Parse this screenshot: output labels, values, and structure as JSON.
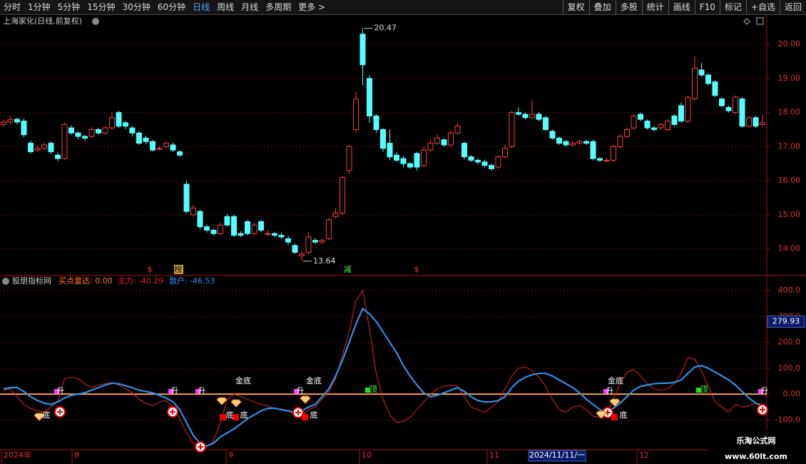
{
  "toolbar": {
    "left": [
      {
        "label": "分时"
      },
      {
        "label": "1分钟"
      },
      {
        "label": "5分钟"
      },
      {
        "label": "15分钟"
      },
      {
        "label": "30分钟"
      },
      {
        "label": "60分钟"
      },
      {
        "label": "日线",
        "active": true
      },
      {
        "label": "周线"
      },
      {
        "label": "月线"
      },
      {
        "label": "多周期"
      },
      {
        "label": "更多 >"
      }
    ],
    "right": [
      {
        "label": "复权"
      },
      {
        "label": "叠加"
      },
      {
        "label": "多股"
      },
      {
        "label": "统计"
      },
      {
        "label": "画线"
      },
      {
        "label": "F10"
      },
      {
        "label": "标记"
      },
      {
        "label": "+自选"
      },
      {
        "label": "返回"
      }
    ]
  },
  "chart_data": [
    {
      "type": "candlestick",
      "title": "上海家化(日线,前复权)",
      "up_color": "#ff3c3c",
      "down_color": "#54ffff",
      "open": [
        17.65,
        17.72,
        17.8,
        17.75,
        17.1,
        16.9,
        16.95,
        17.1,
        16.75,
        16.65,
        17.55,
        17.4,
        17.3,
        17.3,
        17.5,
        17.4,
        17.55,
        18.0,
        17.7,
        17.55,
        17.4,
        17.25,
        17.15,
        16.95,
        17.0,
        17.05,
        16.85,
        15.9,
        15.0,
        15.1,
        14.65,
        14.55,
        14.45,
        14.95,
        14.95,
        14.45,
        14.8,
        14.45,
        14.8,
        14.45,
        14.45,
        14.4,
        14.3,
        14.1,
        13.8,
        13.9,
        14.25,
        14.2,
        14.3,
        14.95,
        15.05,
        16.3,
        17.5,
        20.3,
        19.0,
        17.9,
        17.5,
        17.1,
        16.75,
        16.65,
        16.5,
        16.8,
        16.45,
        16.9,
        17.1,
        17.2,
        17.05,
        17.4,
        17.1,
        16.7,
        16.6,
        16.55,
        16.45,
        16.4,
        16.7,
        17.0,
        18.0,
        17.95,
        17.85,
        17.95,
        17.85,
        17.45,
        17.25,
        17.15,
        17.05,
        17.1,
        17.15,
        17.15,
        16.65,
        16.6,
        16.6,
        17.0,
        17.3,
        17.55,
        17.95,
        17.75,
        17.55,
        17.55,
        17.5,
        17.9,
        18.2,
        17.75,
        18.4,
        19.25,
        19.1,
        18.9,
        18.4,
        18.15,
        18.0,
        18.4,
        17.6,
        17.85,
        17.65
      ],
      "high": [
        17.8,
        17.88,
        17.85,
        17.82,
        17.18,
        17.02,
        17.12,
        17.15,
        16.82,
        17.7,
        17.62,
        17.45,
        17.35,
        17.58,
        17.55,
        17.6,
        18.02,
        18.05,
        17.75,
        17.6,
        17.45,
        17.32,
        17.2,
        17.02,
        17.15,
        17.12,
        16.9,
        16.0,
        15.3,
        15.15,
        14.72,
        14.6,
        14.78,
        15.02,
        15.0,
        14.52,
        14.85,
        14.75,
        14.85,
        14.55,
        14.5,
        14.48,
        14.38,
        14.15,
        13.95,
        14.5,
        14.32,
        14.3,
        14.9,
        15.2,
        16.15,
        17.05,
        18.6,
        20.47,
        19.1,
        17.95,
        17.55,
        17.5,
        16.85,
        16.72,
        16.55,
        16.85,
        17.0,
        17.2,
        17.35,
        17.25,
        17.48,
        17.68,
        17.15,
        16.75,
        16.65,
        16.62,
        16.5,
        16.75,
        17.05,
        18.05,
        18.15,
        18.0,
        18.35,
        18.02,
        17.9,
        17.5,
        17.3,
        17.2,
        17.15,
        17.2,
        17.2,
        17.2,
        16.7,
        16.68,
        17.05,
        17.35,
        17.55,
        17.95,
        18.0,
        17.8,
        17.6,
        17.7,
        17.8,
        17.95,
        18.3,
        18.5,
        19.65,
        19.45,
        19.15,
        18.95,
        18.45,
        18.2,
        18.5,
        18.45,
        17.9,
        17.9,
        17.95
      ],
      "low": [
        17.58,
        17.65,
        17.65,
        17.28,
        16.8,
        16.85,
        16.9,
        16.78,
        16.58,
        16.6,
        17.35,
        17.22,
        17.18,
        17.25,
        17.35,
        17.35,
        17.5,
        17.55,
        17.52,
        17.3,
        17.05,
        17.08,
        16.85,
        16.88,
        16.95,
        16.85,
        16.7,
        15.05,
        14.95,
        14.58,
        14.48,
        14.4,
        14.4,
        14.65,
        14.35,
        14.35,
        14.4,
        14.4,
        14.5,
        14.38,
        14.35,
        14.3,
        14.12,
        13.85,
        13.64,
        13.85,
        14.15,
        14.15,
        14.25,
        14.9,
        15.0,
        16.2,
        17.4,
        18.8,
        17.7,
        17.4,
        16.85,
        16.6,
        16.55,
        16.4,
        16.35,
        16.3,
        16.4,
        16.85,
        17.05,
        17.0,
        17.0,
        17.35,
        16.62,
        16.55,
        16.48,
        16.4,
        16.3,
        16.35,
        16.65,
        16.95,
        17.9,
        17.8,
        17.8,
        17.75,
        17.45,
        17.2,
        17.05,
        17.0,
        17.0,
        17.05,
        17.05,
        16.6,
        16.55,
        16.55,
        16.55,
        16.95,
        17.25,
        17.5,
        17.75,
        17.5,
        17.45,
        17.5,
        17.45,
        17.6,
        17.7,
        17.7,
        18.35,
        19.05,
        18.8,
        18.45,
        18.15,
        18.0,
        17.95,
        17.55,
        17.55,
        17.55,
        17.6
      ],
      "close": [
        17.72,
        17.8,
        17.72,
        17.35,
        16.85,
        16.95,
        17.05,
        16.85,
        16.65,
        17.65,
        17.4,
        17.3,
        17.25,
        17.5,
        17.4,
        17.55,
        17.85,
        17.6,
        17.6,
        17.4,
        17.1,
        17.15,
        16.9,
        16.95,
        17.1,
        16.9,
        16.75,
        15.1,
        15.2,
        14.65,
        14.55,
        14.45,
        14.7,
        14.7,
        14.4,
        14.4,
        14.45,
        14.7,
        14.55,
        14.45,
        14.4,
        14.35,
        14.2,
        13.9,
        13.85,
        14.35,
        14.2,
        14.25,
        14.85,
        15.05,
        16.1,
        17.0,
        18.4,
        19.4,
        17.9,
        17.5,
        16.95,
        16.7,
        16.6,
        16.5,
        16.4,
        16.4,
        16.9,
        17.1,
        17.25,
        17.05,
        17.4,
        17.6,
        16.7,
        16.6,
        16.55,
        16.45,
        16.35,
        16.7,
        16.95,
        18.0,
        17.95,
        17.85,
        17.95,
        17.8,
        17.5,
        17.25,
        17.1,
        17.05,
        17.1,
        17.15,
        17.1,
        16.65,
        16.6,
        16.6,
        17.0,
        17.3,
        17.5,
        17.9,
        17.8,
        17.55,
        17.5,
        17.65,
        17.75,
        17.65,
        17.75,
        18.45,
        19.3,
        19.1,
        18.85,
        18.5,
        18.2,
        18.05,
        18.45,
        17.6,
        17.85,
        17.6,
        17.7
      ],
      "ylim": [
        13.24,
        20.84
      ],
      "yticks": [
        {
          "value": 20,
          "label": "20.00"
        },
        {
          "value": 19,
          "label": "19.00"
        },
        {
          "value": 18,
          "label": "18.00"
        },
        {
          "value": 17,
          "label": "17.00"
        },
        {
          "value": 16,
          "label": "16.00"
        },
        {
          "value": 15,
          "label": "15.00"
        },
        {
          "value": 14,
          "label": "14.00"
        }
      ],
      "grid": true,
      "annotations": [
        "$",
        "榜",
        "减",
        "$"
      ]
    },
    {
      "type": "line",
      "title": "股朋指标网",
      "radar_label": "买点雷达: 0.00",
      "series": [
        {
          "name": "主力:",
          "color": "#e82020",
          "values": [
            15,
            20,
            -10,
            -40,
            -55,
            -65,
            -70,
            -50,
            -30,
            60,
            65,
            60,
            40,
            25,
            35,
            40,
            45,
            35,
            20,
            5,
            -20,
            -35,
            -45,
            -30,
            -25,
            -50,
            -95,
            -150,
            -190,
            -200,
            -205,
            -180,
            -110,
            -20,
            0,
            -10,
            -20,
            -30,
            -40,
            -45,
            -55,
            -60,
            -65,
            -80,
            -85,
            -60,
            -50,
            -20,
            10,
            60,
            150,
            240,
            360,
            400,
            250,
            80,
            -20,
            -80,
            -110,
            -105,
            -90,
            -60,
            -30,
            0,
            20,
            30,
            35,
            30,
            -10,
            -50,
            -60,
            -70,
            -50,
            -30,
            20,
            70,
            100,
            105,
            90,
            65,
            30,
            -20,
            -60,
            -70,
            -50,
            -45,
            -60,
            -85,
            -90,
            -80,
            -20,
            40,
            85,
            95,
            70,
            40,
            20,
            15,
            20,
            40,
            80,
            140,
            135,
            90,
            30,
            -30,
            -50,
            -70,
            -40,
            -50,
            -45,
            -35,
            -40.29
          ]
        },
        {
          "name": "散户:",
          "color": "#2f8fe8",
          "values": [
            20,
            25,
            25,
            10,
            -10,
            -25,
            -35,
            -40,
            -30,
            -15,
            -5,
            0,
            5,
            15,
            25,
            35,
            42,
            40,
            32,
            25,
            15,
            10,
            5,
            -5,
            -15,
            -30,
            -60,
            -110,
            -160,
            -190,
            -200,
            -190,
            -165,
            -150,
            -135,
            -115,
            -95,
            -80,
            -65,
            -55,
            -55,
            -60,
            -65,
            -70,
            -65,
            -50,
            -40,
            -10,
            20,
            70,
            130,
            200,
            270,
            330,
            310,
            280,
            240,
            200,
            160,
            110,
            70,
            35,
            5,
            -10,
            -5,
            5,
            15,
            25,
            10,
            -10,
            -25,
            -30,
            -30,
            -25,
            -10,
            25,
            50,
            65,
            75,
            80,
            80,
            70,
            55,
            40,
            25,
            5,
            -20,
            -40,
            -60,
            -70,
            -55,
            -35,
            -10,
            15,
            30,
            35,
            40,
            42,
            42,
            45,
            55,
            80,
            105,
            110,
            100,
            85,
            70,
            55,
            35,
            10,
            -15,
            -35,
            -46.53
          ]
        }
      ],
      "ylim": [
        -215,
        425
      ],
      "yticks": [
        {
          "value": 400,
          "label": "400.0"
        },
        {
          "value": 300,
          "label": "300.0"
        },
        {
          "value": 200,
          "label": "200.0"
        },
        {
          "value": 100,
          "label": "100.0"
        },
        {
          "value": 0,
          "label": "0.00"
        },
        {
          "value": -100,
          "label": "-100.0"
        }
      ],
      "cursor_value": 279.93,
      "zero_color": "#ff9a3c",
      "grid": true,
      "annotations": [
        "升",
        "升",
        "升",
        "升",
        "升",
        "升",
        "底",
        "底",
        "底",
        "底",
        "底",
        "金底",
        "金底",
        "金底",
        "顶",
        "顶"
      ]
    }
  ],
  "x_labels": [
    "2024年",
    "8",
    "9",
    "10",
    "11",
    "12"
  ],
  "cursor_date": "2024/11/11/一",
  "watermark": [
    "乐淘公式网",
    "www.60lt.com"
  ]
}
